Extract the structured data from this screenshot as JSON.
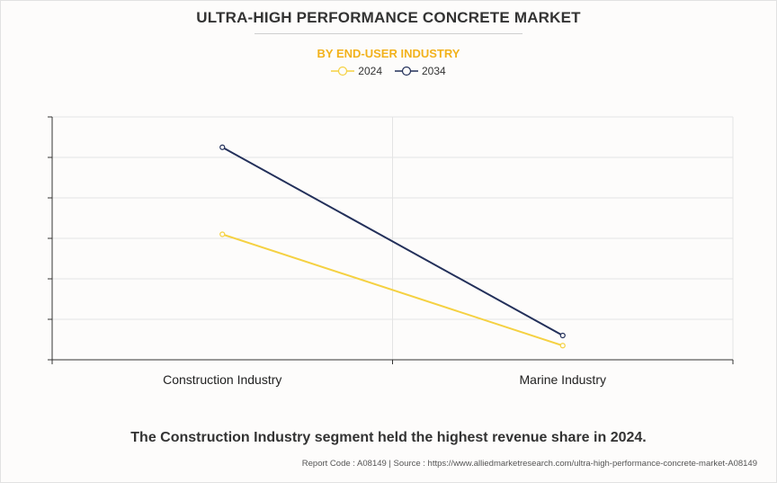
{
  "header": {
    "title": "ULTRA-HIGH PERFORMANCE CONCRETE MARKET",
    "subtitle": "BY END-USER INDUSTRY"
  },
  "legend": [
    {
      "label": "2024",
      "color": "#f5d142"
    },
    {
      "label": "2034",
      "color": "#23305a"
    }
  ],
  "chart_data": {
    "type": "line",
    "categories": [
      "Construction Industry",
      "Marine Industry"
    ],
    "series": [
      {
        "name": "2024",
        "color": "#f5d142",
        "values": [
          3.1,
          0.35
        ]
      },
      {
        "name": "2034",
        "color": "#23305a",
        "values": [
          5.25,
          0.6
        ]
      }
    ],
    "ylim": [
      0,
      6
    ],
    "title": "ULTRA-HIGH PERFORMANCE CONCRETE MARKET",
    "subtitle": "BY END-USER INDUSTRY",
    "xlabel": "",
    "ylabel": ""
  },
  "caption": "The Construction Industry segment held the highest revenue share in 2024.",
  "footer": "Report Code : A08149  |  Source : https://www.alliedmarketresearch.com/ultra-high-performance-concrete-market-A08149"
}
